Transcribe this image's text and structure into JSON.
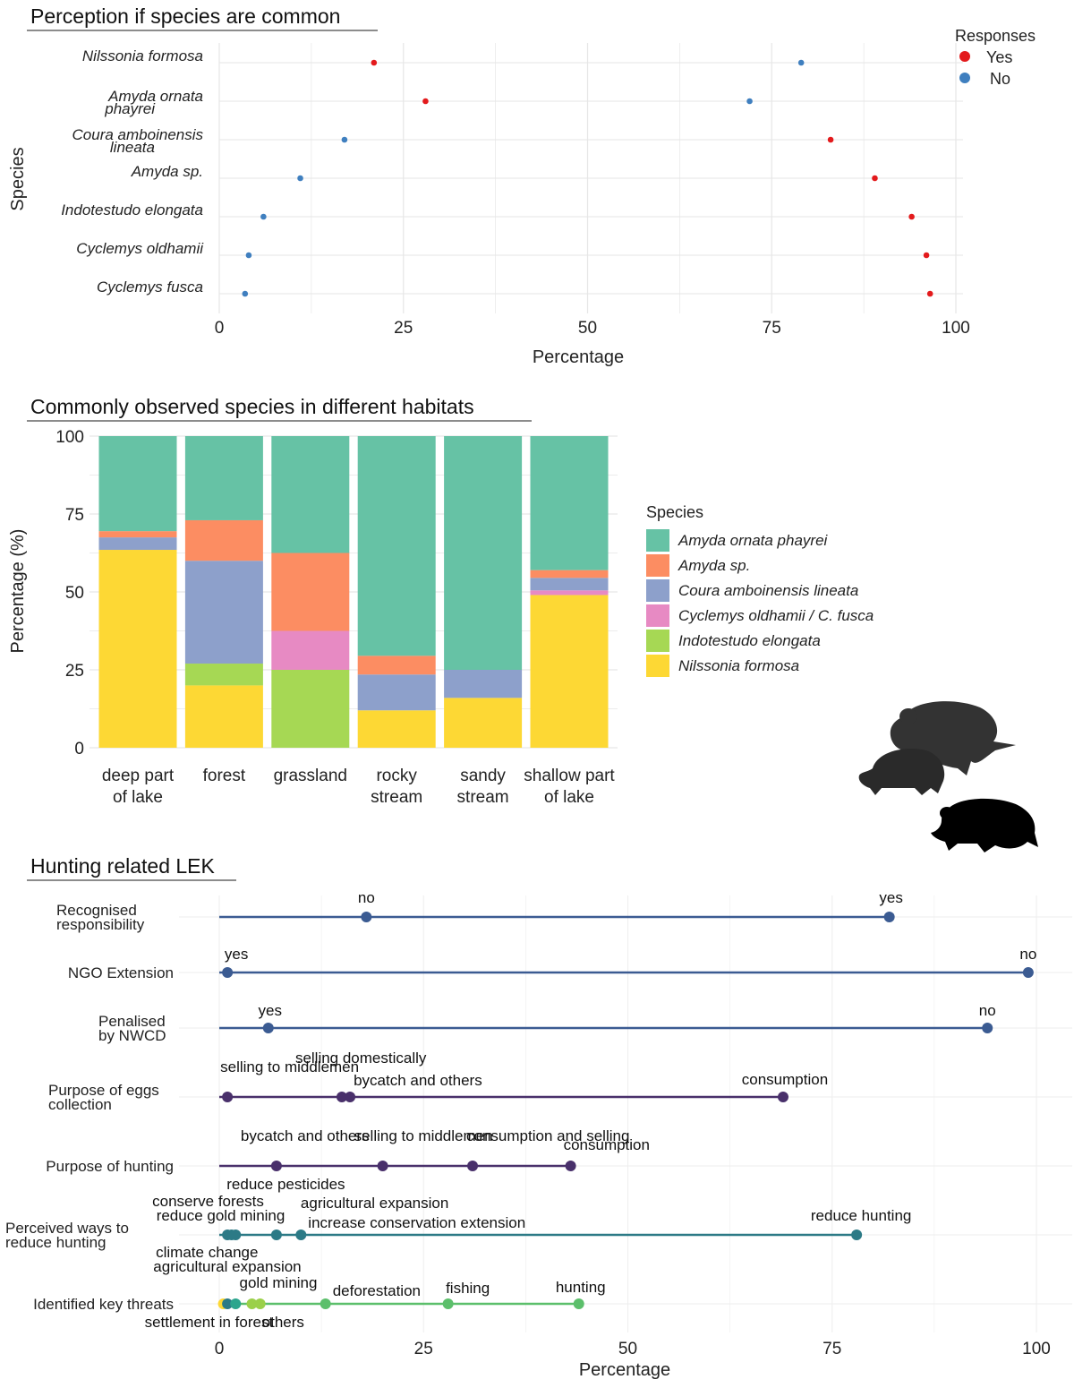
{
  "colors": {
    "yes": "#e31a1c",
    "no": "#3f7fbf",
    "grid": "#e6e6e6",
    "turtle": "#333333"
  },
  "turtle_icons": [
    "turtle-silhouette",
    "tortoise-silhouette",
    "softshell-turtle-silhouette"
  ],
  "chart_data": [
    {
      "type": "scatter",
      "title": "Perception if species are common",
      "xlabel": "Percentage",
      "ylabel": "Species",
      "xlim": [
        0,
        100
      ],
      "xticks": [
        "0",
        "25",
        "50",
        "75",
        "100"
      ],
      "legend_title": "Responses",
      "legend_placement": "top-right",
      "series_labels": [
        "Yes",
        "No"
      ],
      "categories": [
        {
          "name": "Nilssonia formosa",
          "lines": [
            "Nilssonia formosa"
          ],
          "yes": 21,
          "no": 79
        },
        {
          "name": "Amyda ornata phayrei",
          "lines": [
            "Amyda ornata",
            "phayrei"
          ],
          "yes": 28,
          "no": 72
        },
        {
          "name": "Coura amboinensis lineata",
          "lines": [
            "Coura amboinensis",
            "lineata"
          ],
          "yes": 83,
          "no": 17
        },
        {
          "name": "Amyda sp.",
          "lines": [
            "Amyda sp."
          ],
          "yes": 89,
          "no": 11
        },
        {
          "name": "Indotestudo elongata",
          "lines": [
            "Indotestudo elongata"
          ],
          "yes": 94,
          "no": 6
        },
        {
          "name": "Cyclemys oldhamii",
          "lines": [
            "Cyclemys oldhamii"
          ],
          "yes": 96,
          "no": 4
        },
        {
          "name": "Cyclemys fusca",
          "lines": [
            "Cyclemys fusca"
          ],
          "yes": 96.5,
          "no": 3.5
        }
      ]
    },
    {
      "type": "bar",
      "stacked": true,
      "title": "Commonly observed species in different habitats",
      "ylabel": "Percentage (%)",
      "ylim": [
        0,
        100
      ],
      "yticks": [
        "0",
        "25",
        "50",
        "75",
        "100"
      ],
      "legend_title": "Species",
      "legend_placement": "right",
      "categories": [
        {
          "name": "deep part of lake",
          "lines": [
            "deep part",
            "of lake"
          ]
        },
        {
          "name": "forest",
          "lines": [
            "forest"
          ]
        },
        {
          "name": "grassland",
          "lines": [
            "grassland"
          ]
        },
        {
          "name": "rocky stream",
          "lines": [
            "rocky",
            "stream"
          ]
        },
        {
          "name": "sandy stream",
          "lines": [
            "sandy",
            "stream"
          ]
        },
        {
          "name": "shallow part of lake",
          "lines": [
            "shallow part",
            "of lake"
          ]
        }
      ],
      "series": [
        {
          "name": "Nilssonia formosa",
          "color": "#fdd834",
          "values": [
            63.5,
            20,
            0,
            12,
            16,
            49
          ]
        },
        {
          "name": "Indotestudo elongata",
          "color": "#a6d854",
          "values": [
            0,
            7,
            25,
            0,
            0,
            0
          ]
        },
        {
          "name": "Cyclemys oldhamii / C. fusca",
          "color": "#e78ac3",
          "values": [
            0,
            0,
            12.5,
            0,
            0,
            1.5
          ]
        },
        {
          "name": "Coura amboinensis lineata",
          "color": "#8da0cb",
          "values": [
            4,
            33,
            0,
            11.5,
            9,
            4
          ]
        },
        {
          "name": "Amyda sp.",
          "color": "#fc8d62",
          "values": [
            2,
            13,
            25,
            6,
            0,
            2.5
          ]
        },
        {
          "name": "Amyda ornata phayrei",
          "color": "#66c2a5",
          "values": [
            30.5,
            27,
            37.5,
            70.5,
            75,
            43
          ]
        }
      ],
      "legend_order": [
        "Amyda ornata phayrei",
        "Amyda sp.",
        "Coura amboinensis lineata",
        "Cyclemys oldhamii / C. fusca",
        "Indotestudo elongata",
        "Nilssonia formosa"
      ]
    },
    {
      "type": "scatter",
      "subtype": "dot-line",
      "title": "Hunting related LEK",
      "xlabel": "Percentage",
      "xlim": [
        0,
        100
      ],
      "xticks": [
        "0",
        "25",
        "50",
        "75",
        "100"
      ],
      "rows": [
        {
          "name": "Recognised responsibility",
          "lines": [
            "Recognised",
            "responsibility"
          ],
          "color": "#3b5b92",
          "points": [
            {
              "label": "no",
              "value": 18
            },
            {
              "label": "yes",
              "value": 82
            }
          ]
        },
        {
          "name": "NGO Extension",
          "lines": [
            "NGO Extension"
          ],
          "color": "#3b5b92",
          "points": [
            {
              "label": "yes",
              "value": 1
            },
            {
              "label": "no",
              "value": 99
            }
          ]
        },
        {
          "name": "Penalised by NWCD",
          "lines": [
            "Penalised",
            "by NWCD"
          ],
          "color": "#3b5b92",
          "points": [
            {
              "label": "yes",
              "value": 6
            },
            {
              "label": "no",
              "value": 94
            }
          ]
        },
        {
          "name": "Purpose of eggs collection",
          "lines": [
            "Purpose of eggs",
            "collection"
          ],
          "color": "#49306b",
          "points": [
            {
              "label": "selling to middlemen",
              "value": 1
            },
            {
              "label": "selling domestically",
              "value": 15
            },
            {
              "label": "bycatch and others",
              "value": 16
            },
            {
              "label": "consumption",
              "value": 69
            }
          ]
        },
        {
          "name": "Purpose of hunting",
          "lines": [
            "Purpose of hunting"
          ],
          "color": "#49306b",
          "points": [
            {
              "label": "bycatch and others",
              "value": 7
            },
            {
              "label": "selling to middlemen",
              "value": 20
            },
            {
              "label": "consumption and selling",
              "value": 31
            },
            {
              "label": "consumption",
              "value": 43
            }
          ]
        },
        {
          "name": "Perceived ways to reduce hunting",
          "lines": [
            "Perceived ways to",
            "reduce hunting"
          ],
          "color": "#2c7a86",
          "points": [
            {
              "label": "conserve forests",
              "value": 1
            },
            {
              "label": "reduce gold mining",
              "value": 1.5
            },
            {
              "label": "reduce pesticides",
              "value": 2
            },
            {
              "label": "agricultural expansion",
              "value": 7
            },
            {
              "label": "increase conservation extension",
              "value": 10
            },
            {
              "label": "reduce hunting",
              "value": 78
            }
          ]
        },
        {
          "name": "Identified key threats",
          "lines": [
            "Identified key threats"
          ],
          "color": "#5cbf6b",
          "points": [
            {
              "label": "settlement in forest",
              "value": 0.5
            },
            {
              "label": "climate change",
              "value": 1
            },
            {
              "label": "agricultural expansion",
              "value": 2
            },
            {
              "label": "gold mining",
              "value": 4
            },
            {
              "label": "others",
              "value": 5
            },
            {
              "label": "deforestation",
              "value": 13
            },
            {
              "label": "fishing",
              "value": 28
            },
            {
              "label": "hunting",
              "value": 44
            }
          ]
        }
      ]
    }
  ]
}
